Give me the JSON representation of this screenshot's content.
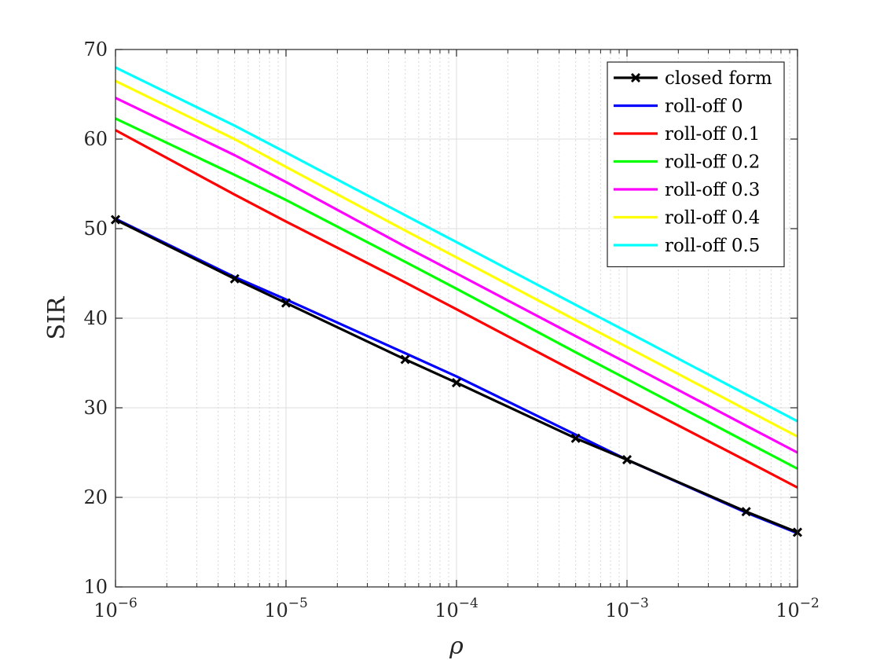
{
  "chart_data": {
    "type": "line",
    "title": "",
    "xlabel": "ρ",
    "ylabel": "SIR",
    "x_scale": "log",
    "xlim": [
      1e-06,
      0.01
    ],
    "ylim": [
      10,
      70
    ],
    "grid": true,
    "legend_position": "top-right",
    "x_ticks": [
      {
        "value": 1e-06,
        "base": "10",
        "exp": "−6"
      },
      {
        "value": 1e-05,
        "base": "10",
        "exp": "−5"
      },
      {
        "value": 0.0001,
        "base": "10",
        "exp": "−4"
      },
      {
        "value": 0.001,
        "base": "10",
        "exp": "−3"
      },
      {
        "value": 0.01,
        "base": "10",
        "exp": "−2"
      }
    ],
    "y_ticks": [
      {
        "value": 10,
        "label": "10"
      },
      {
        "value": 20,
        "label": "20"
      },
      {
        "value": 30,
        "label": "30"
      },
      {
        "value": 40,
        "label": "40"
      },
      {
        "value": 50,
        "label": "50"
      },
      {
        "value": 60,
        "label": "60"
      },
      {
        "value": 70,
        "label": "70"
      }
    ],
    "series": [
      {
        "name": "closed form",
        "color": "#000000",
        "marker": "x",
        "x": [
          1e-06,
          5e-06,
          1e-05,
          5e-05,
          0.0001,
          0.0005,
          0.001,
          0.005,
          0.01
        ],
        "y": [
          51.0,
          44.4,
          41.7,
          35.4,
          32.8,
          26.6,
          24.2,
          18.4,
          16.1
        ]
      },
      {
        "name": "roll-off 0",
        "color": "#0000ff",
        "x": [
          1e-06,
          5e-06,
          1e-05,
          5e-05,
          0.0001,
          0.0005,
          0.001,
          0.005,
          0.01
        ],
        "y": [
          51.1,
          44.6,
          42.1,
          36.1,
          33.5,
          27.0,
          24.2,
          18.3,
          16.0
        ]
      },
      {
        "name": "roll-off 0.1",
        "color": "#ff0000",
        "x": [
          1e-06,
          5e-06,
          1e-05,
          5e-05,
          0.0001,
          0.0005,
          0.001,
          0.005,
          0.01
        ],
        "y": [
          61.0,
          53.8,
          50.8,
          44.0,
          41.0,
          34.0,
          31.0,
          24.1,
          21.1
        ]
      },
      {
        "name": "roll-off 0.2",
        "color": "#00ff00",
        "x": [
          1e-06,
          5e-06,
          1e-05,
          5e-05,
          0.0001,
          0.0005,
          0.001,
          0.005,
          0.01
        ],
        "y": [
          62.3,
          56.0,
          53.2,
          46.3,
          43.3,
          36.2,
          33.2,
          26.2,
          23.2
        ]
      },
      {
        "name": "roll-off 0.3",
        "color": "#ff00ff",
        "x": [
          1e-06,
          5e-06,
          1e-05,
          5e-05,
          0.0001,
          0.0005,
          0.001,
          0.005,
          0.01
        ],
        "y": [
          64.6,
          58.2,
          55.2,
          48.0,
          45.0,
          38.0,
          35.0,
          28.0,
          25.0
        ]
      },
      {
        "name": "roll-off 0.4",
        "color": "#ffff00",
        "x": [
          1e-06,
          5e-06,
          1e-05,
          5e-05,
          0.0001,
          0.0005,
          0.001,
          0.005,
          0.01
        ],
        "y": [
          66.5,
          60.0,
          56.9,
          49.8,
          46.8,
          39.8,
          36.8,
          29.8,
          26.8
        ]
      },
      {
        "name": "roll-off 0.5",
        "color": "#00ffff",
        "x": [
          1e-06,
          5e-06,
          1e-05,
          5e-05,
          0.0001,
          0.0005,
          0.001,
          0.005,
          0.01
        ],
        "y": [
          68.0,
          61.5,
          58.5,
          51.5,
          48.5,
          41.5,
          38.5,
          31.5,
          28.5
        ]
      }
    ]
  }
}
